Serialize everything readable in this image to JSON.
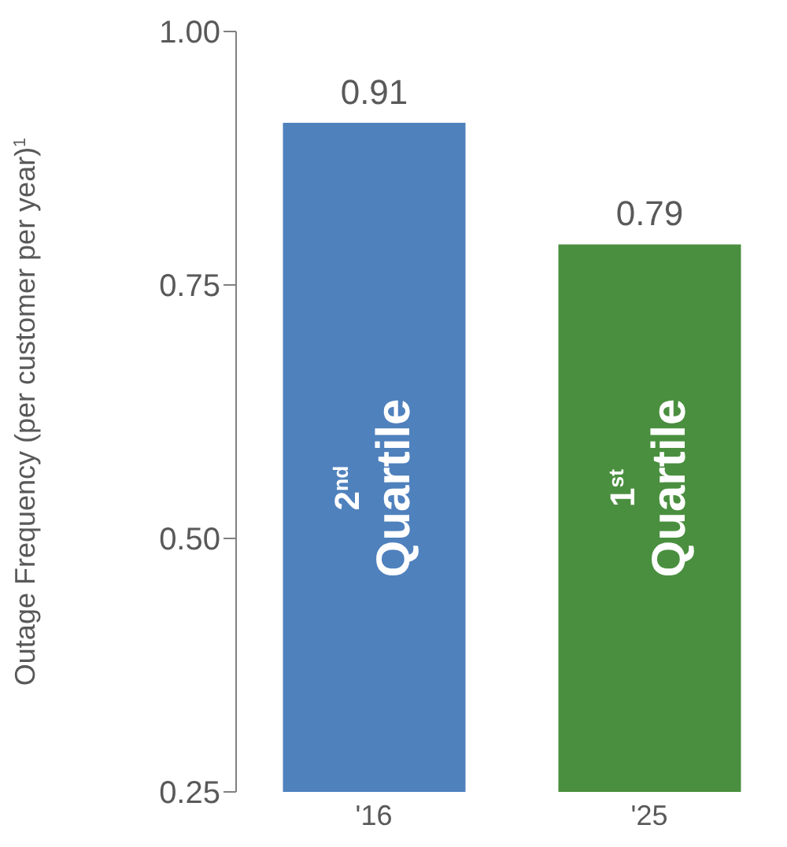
{
  "chart_data": {
    "type": "bar",
    "ylabel": "Outage Frequency (per customer per year)$^{1}$",
    "categories": [
      "'16",
      "'25"
    ],
    "values": [
      0.91,
      0.79
    ],
    "colors": [
      "#4f81bd",
      "#4a8f3f"
    ],
    "ylim": [
      0.25,
      1.0
    ],
    "yticks": [
      {
        "value": 0.25,
        "label": "0.25"
      },
      {
        "value": 0.5,
        "label": "0.50"
      },
      {
        "value": 0.75,
        "label": "0.75"
      },
      {
        "value": 1.0,
        "label": "1.00"
      }
    ],
    "data_labels": true,
    "annotations": [
      "2$^{nd}$ Quartile",
      "1$^{st}$ Quartile"
    ]
  }
}
